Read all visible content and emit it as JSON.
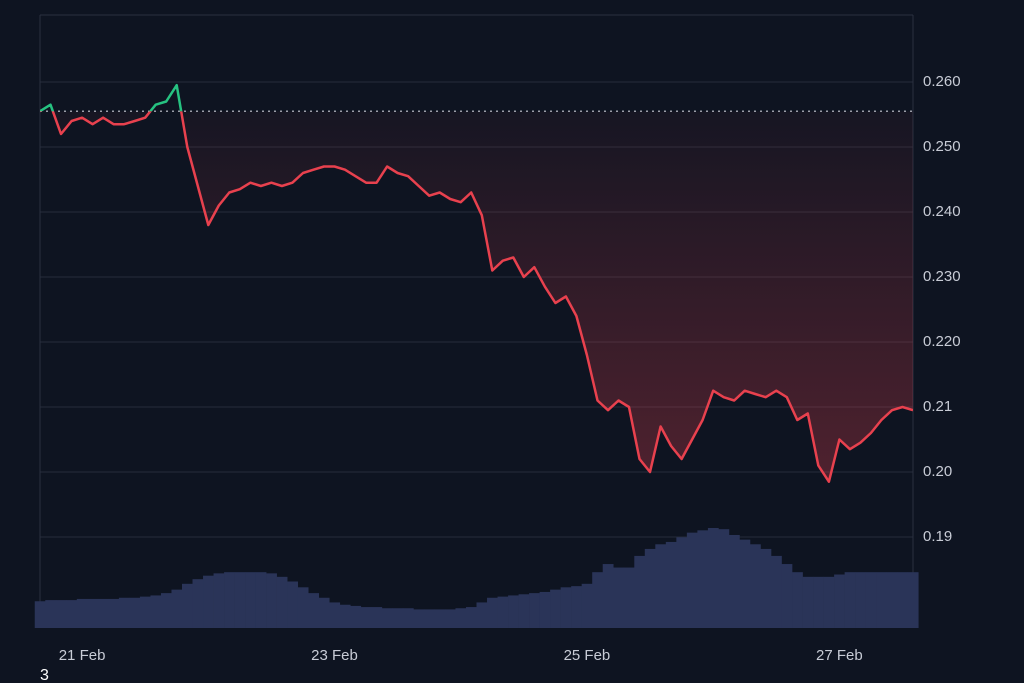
{
  "chart_data": {
    "type": "line",
    "categories": [
      null,
      null,
      null,
      null,
      "21 Feb",
      null,
      null,
      null,
      null,
      null,
      null,
      null,
      null,
      null,
      null,
      null,
      null,
      null,
      null,
      null,
      null,
      null,
      null,
      null,
      null,
      null,
      null,
      null,
      "23 Feb",
      null,
      null,
      null,
      null,
      null,
      null,
      null,
      null,
      null,
      null,
      null,
      null,
      null,
      null,
      null,
      null,
      null,
      null,
      null,
      null,
      null,
      null,
      null,
      "25 Feb",
      null,
      null,
      null,
      null,
      null,
      null,
      null,
      null,
      null,
      null,
      null,
      null,
      null,
      null,
      null,
      null,
      null,
      null,
      null,
      null,
      null,
      null,
      null,
      "27 Feb",
      null,
      null,
      null,
      null,
      null,
      null,
      null
    ],
    "values": [
      0.2555,
      0.2565,
      0.252,
      0.254,
      0.2545,
      0.2535,
      0.2545,
      0.2535,
      0.2535,
      0.254,
      0.2545,
      0.2565,
      0.257,
      0.2595,
      0.25,
      0.244,
      0.238,
      0.241,
      0.243,
      0.2435,
      0.2445,
      0.244,
      0.2445,
      0.244,
      0.2445,
      0.246,
      0.2465,
      0.247,
      0.247,
      0.2465,
      0.2455,
      0.2445,
      0.2445,
      0.247,
      0.246,
      0.2455,
      0.244,
      0.2425,
      0.243,
      0.242,
      0.2415,
      0.243,
      0.2395,
      0.231,
      0.2325,
      0.233,
      0.23,
      0.2315,
      0.2285,
      0.226,
      0.227,
      0.224,
      0.218,
      0.211,
      0.2095,
      0.211,
      0.21,
      0.202,
      0.2,
      0.207,
      0.204,
      0.202,
      0.205,
      0.208,
      0.2125,
      0.2115,
      0.211,
      0.2125,
      0.212,
      0.2115,
      0.2125,
      0.2115,
      0.208,
      0.209,
      0.201,
      0.1985,
      0.205,
      0.2035,
      0.2045,
      0.206,
      0.208,
      0.2095,
      0.21,
      0.2095
    ],
    "volume": [
      23,
      24,
      24,
      24,
      25,
      25,
      25,
      25,
      26,
      26,
      27,
      28,
      30,
      33,
      38,
      42,
      45,
      47,
      48,
      48,
      48,
      48,
      47,
      44,
      40,
      35,
      30,
      26,
      22,
      20,
      19,
      18,
      18,
      17,
      17,
      17,
      16,
      16,
      16,
      16,
      17,
      18,
      22,
      26,
      27,
      28,
      29,
      30,
      31,
      33,
      35,
      36,
      38,
      48,
      55,
      52,
      52,
      62,
      68,
      72,
      74,
      78,
      82,
      84,
      86,
      85,
      80,
      76,
      72,
      68,
      62,
      55,
      48,
      44,
      44,
      44,
      46,
      48,
      48,
      48,
      48,
      48,
      48,
      48
    ],
    "baseline": 0.2555,
    "up_color": "#26c281",
    "down_color": "#e8414e",
    "volume_color": "#2a3458",
    "ylim": [
      0.176,
      0.2703
    ],
    "yticks": [
      {
        "value": 0.26,
        "label": "0.260"
      },
      {
        "value": 0.25,
        "label": "0.250"
      },
      {
        "value": 0.24,
        "label": "0.240"
      },
      {
        "value": 0.23,
        "label": "0.230"
      },
      {
        "value": 0.22,
        "label": "0.220"
      },
      0.21,
      {
        "value": 0.2,
        "label": "0.20"
      },
      0.19
    ],
    "grid": true,
    "footnote": "3"
  }
}
